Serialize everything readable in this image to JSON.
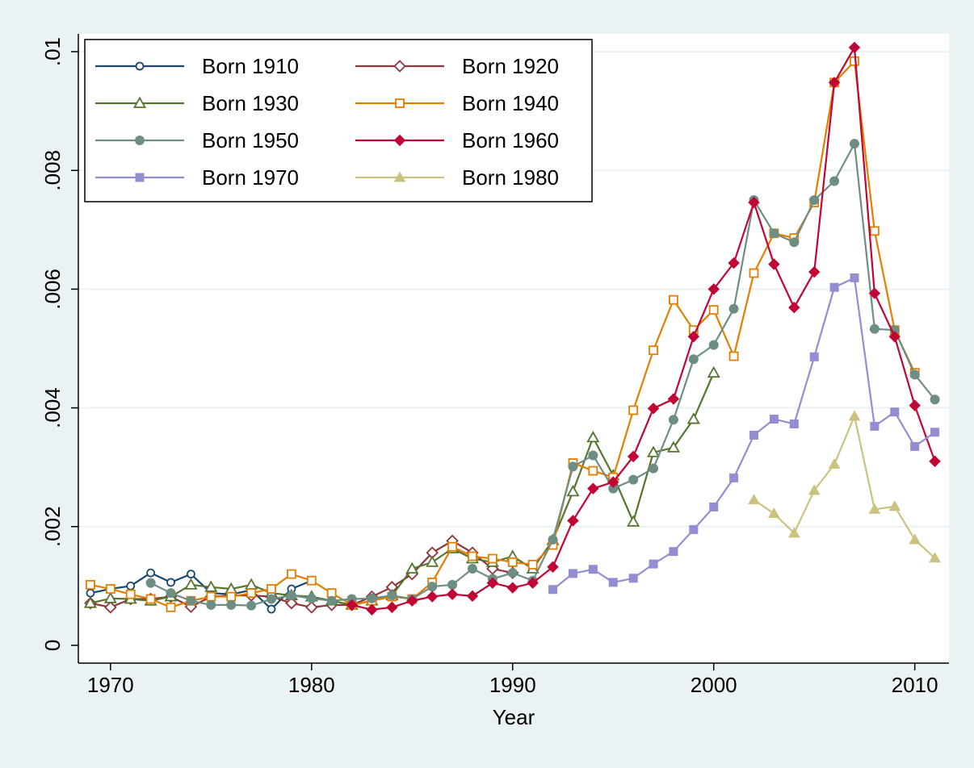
{
  "chart_data": {
    "type": "line",
    "x_label": "Year",
    "xlim": [
      1968.4,
      2011.7
    ],
    "xticks": [
      1970,
      1980,
      1990,
      2000,
      2010
    ],
    "ylim": [
      -0.0003,
      0.0103
    ],
    "yticks": [
      0,
      {
        "value": 0.002,
        "label": ".002"
      },
      {
        "value": 0.004,
        "label": ".004"
      },
      {
        "value": 0.006,
        "label": ".006"
      },
      {
        "value": 0.008,
        "label": ".008"
      },
      {
        "value": 0.01,
        "label": ".01"
      }
    ],
    "grid": true,
    "legend": "top-left",
    "series": [
      {
        "name": "Born 1910",
        "color": "#1a476f",
        "marker": "circle-open",
        "x": [
          1969,
          1970,
          1971,
          1972,
          1973,
          1974,
          1975,
          1976,
          1977,
          1978,
          1979,
          1980
        ],
        "values": [
          0.00088,
          0.00095,
          0.001,
          0.00122,
          0.00106,
          0.0012,
          0.00088,
          0.00086,
          0.00093,
          0.00061,
          0.00095,
          0.00109
        ]
      },
      {
        "name": "Born 1920",
        "color": "#90353b",
        "marker": "diamond-open",
        "x": [
          1969,
          1970,
          1971,
          1972,
          1973,
          1974,
          1975,
          1976,
          1977,
          1978,
          1979,
          1980,
          1981,
          1982,
          1983,
          1984,
          1985,
          1986,
          1987,
          1988,
          1989,
          1990
        ],
        "values": [
          0.00071,
          0.00064,
          0.00078,
          0.00078,
          0.00082,
          0.00065,
          0.00082,
          0.00084,
          0.00084,
          0.00082,
          0.00071,
          0.00064,
          0.00068,
          0.00068,
          0.00082,
          0.00098,
          0.0012,
          0.00156,
          0.00176,
          0.00156,
          0.00129,
          0.00122
        ]
      },
      {
        "name": "Born 1930",
        "color": "#55752f",
        "marker": "triangle-open",
        "x": [
          1969,
          1970,
          1971,
          1972,
          1973,
          1974,
          1975,
          1976,
          1977,
          1978,
          1979,
          1980,
          1981,
          1982,
          1983,
          1984,
          1985,
          1986,
          1987,
          1988,
          1989,
          1990,
          1991,
          1992,
          1993,
          1994,
          1995,
          1996,
          1997,
          1998,
          1999,
          2000
        ],
        "values": [
          0.00071,
          0.00079,
          0.00078,
          0.00075,
          0.00082,
          0.00102,
          0.00098,
          0.00095,
          0.00102,
          0.00088,
          0.00084,
          0.00082,
          0.00075,
          0.00068,
          0.00075,
          0.00084,
          0.00129,
          0.0014,
          0.00163,
          0.00146,
          0.0014,
          0.0015,
          0.00129,
          0.00177,
          0.00259,
          0.0035,
          0.00286,
          0.00208,
          0.00325,
          0.00333,
          0.00381,
          0.00459
        ]
      },
      {
        "name": "Born 1940",
        "color": "#e37e00",
        "marker": "square-open",
        "x": [
          1969,
          1970,
          1971,
          1972,
          1973,
          1974,
          1975,
          1976,
          1977,
          1978,
          1979,
          1980,
          1981,
          1982,
          1983,
          1984,
          1985,
          1986,
          1987,
          1988,
          1989,
          1990,
          1991,
          1992,
          1993,
          1994,
          1995,
          1996,
          1997,
          1998,
          1999,
          2000,
          2001,
          2002,
          2003,
          2004,
          2005,
          2006,
          2007,
          2008,
          2009,
          2010
        ],
        "values": [
          0.00102,
          0.00095,
          0.00086,
          0.00078,
          0.00064,
          0.00075,
          0.00082,
          0.00082,
          0.00088,
          0.00095,
          0.0012,
          0.00109,
          0.00088,
          0.00068,
          0.00075,
          0.00082,
          0.00078,
          0.00106,
          0.00166,
          0.0015,
          0.00146,
          0.0014,
          0.00136,
          0.00169,
          0.00307,
          0.00294,
          0.00283,
          0.00396,
          0.00497,
          0.00582,
          0.00531,
          0.00565,
          0.00487,
          0.00627,
          0.00694,
          0.00686,
          0.00746,
          0.00948,
          0.00984,
          0.00698,
          0.00531,
          0.00459
        ]
      },
      {
        "name": "Born 1950",
        "color": "#6e8e84",
        "marker": "circle",
        "x": [
          1972,
          1973,
          1974,
          1975,
          1976,
          1977,
          1978,
          1979,
          1980,
          1981,
          1982,
          1983,
          1984,
          1985,
          1986,
          1987,
          1988,
          1989,
          1990,
          1991,
          1992,
          1993,
          1994,
          1995,
          1996,
          1997,
          1998,
          1999,
          2000,
          2001,
          2002,
          2003,
          2004,
          2005,
          2006,
          2007,
          2008,
          2009,
          2010,
          2011
        ],
        "values": [
          0.00105,
          0.00088,
          0.00075,
          0.00068,
          0.00068,
          0.00067,
          0.00078,
          0.00084,
          0.00079,
          0.00075,
          0.00078,
          0.00079,
          0.00084,
          0.00078,
          0.00099,
          0.00102,
          0.00129,
          0.00112,
          0.00122,
          0.00109,
          0.00178,
          0.00301,
          0.0032,
          0.00264,
          0.00279,
          0.00298,
          0.0038,
          0.00482,
          0.00506,
          0.00567,
          0.0075,
          0.00694,
          0.00679,
          0.0075,
          0.00782,
          0.00845,
          0.00533,
          0.00531,
          0.00456,
          0.00414
        ]
      },
      {
        "name": "Born 1960",
        "color": "#c10534",
        "marker": "diamond",
        "x": [
          1982,
          1983,
          1984,
          1985,
          1986,
          1987,
          1988,
          1989,
          1990,
          1991,
          1992,
          1993,
          1994,
          1995,
          1996,
          1997,
          1998,
          1999,
          2000,
          2001,
          2002,
          2003,
          2004,
          2005,
          2006,
          2007,
          2008,
          2009,
          2010,
          2011
        ],
        "values": [
          0.00068,
          0.0006,
          0.00064,
          0.00075,
          0.00082,
          0.00086,
          0.00083,
          0.00105,
          0.00097,
          0.00105,
          0.00132,
          0.0021,
          0.00264,
          0.00275,
          0.00318,
          0.00399,
          0.00415,
          0.0052,
          0.006,
          0.00644,
          0.00746,
          0.00642,
          0.00569,
          0.00629,
          0.00948,
          0.01007,
          0.00593,
          0.0052,
          0.00404,
          0.0031
        ]
      },
      {
        "name": "Born 1970",
        "color": "#938dd2",
        "marker": "square",
        "x": [
          1992,
          1993,
          1994,
          1995,
          1996,
          1997,
          1998,
          1999,
          2000,
          2001,
          2002,
          2003,
          2004,
          2005,
          2006,
          2007,
          2008,
          2009,
          2010,
          2011
        ],
        "values": [
          0.00094,
          0.00121,
          0.00128,
          0.00106,
          0.00113,
          0.00137,
          0.00158,
          0.00195,
          0.00233,
          0.00282,
          0.00354,
          0.00381,
          0.00373,
          0.00486,
          0.00603,
          0.00619,
          0.00369,
          0.00393,
          0.00335,
          0.00359
        ]
      },
      {
        "name": "Born 1980",
        "color": "#cac27e",
        "marker": "triangle",
        "x": [
          2002,
          2003,
          2004,
          2005,
          2006,
          2007,
          2008,
          2009,
          2010,
          2011
        ],
        "values": [
          0.00245,
          0.00222,
          0.00189,
          0.00261,
          0.00305,
          0.00386,
          0.00229,
          0.00234,
          0.00178,
          0.00147
        ]
      }
    ]
  }
}
